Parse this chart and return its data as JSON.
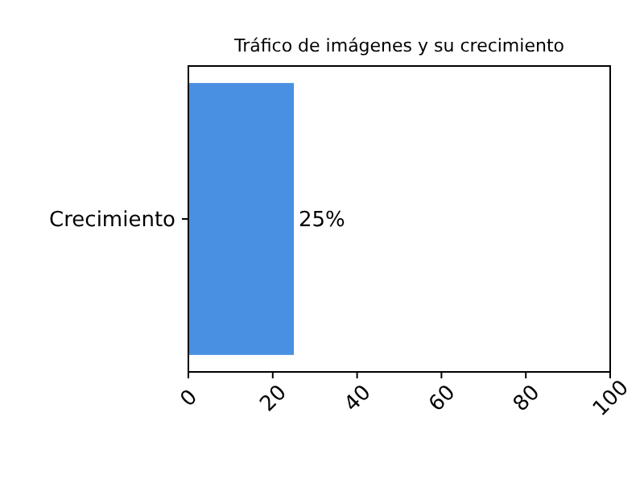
{
  "chart_data": {
    "type": "bar",
    "orientation": "horizontal",
    "title": "Tráfico de imágenes y su crecimiento",
    "categories": [
      "Crecimiento"
    ],
    "values": [
      25
    ],
    "value_labels": [
      "25%"
    ],
    "color": "#4a90e2",
    "xlim": [
      0,
      100
    ],
    "xticks": [
      0,
      20,
      40,
      60,
      80,
      100
    ]
  }
}
